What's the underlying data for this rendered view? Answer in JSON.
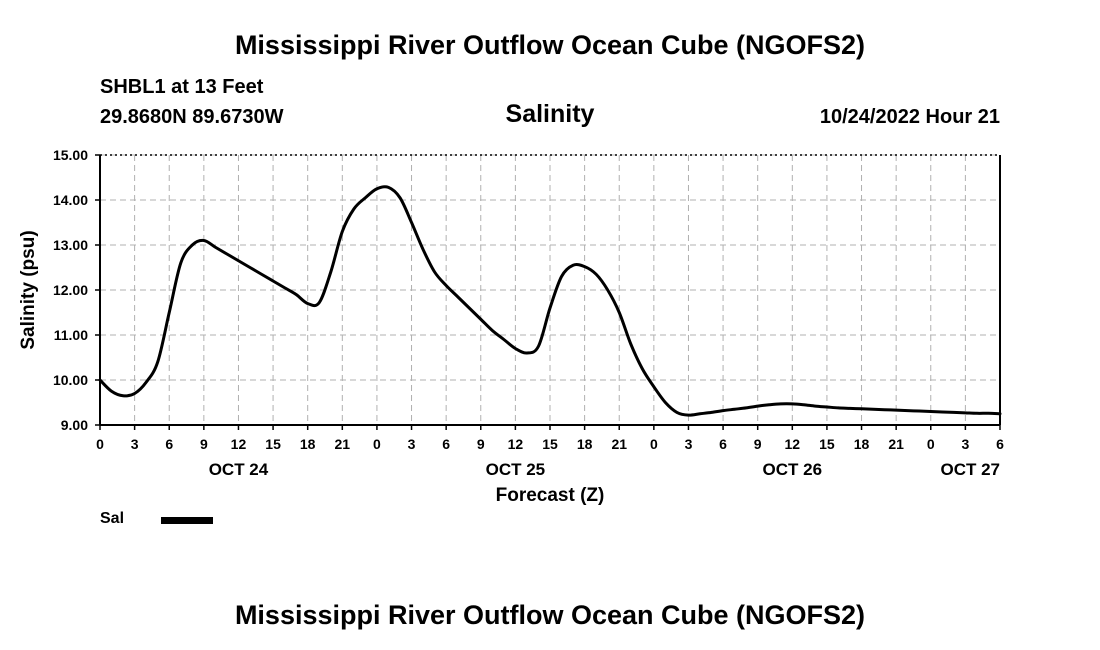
{
  "header": {
    "title": "Mississippi River Outflow Ocean Cube (NGOFS2)",
    "station": "SHBL1 at 13 Feet",
    "coords": "29.8680N  89.6730W",
    "timestamp": "10/24/2022 Hour 21"
  },
  "footer": {
    "title": "Mississippi River Outflow Ocean Cube (NGOFS2)"
  },
  "legend": {
    "label": "Sal"
  },
  "chart_data": {
    "type": "line",
    "title": "Salinity",
    "xlabel": "Forecast (Z)",
    "ylabel": "Salinity (psu)",
    "xlim": [
      0,
      78
    ],
    "ylim": [
      9.0,
      15.0
    ],
    "grid": true,
    "x_ticks": [
      0,
      3,
      6,
      9,
      12,
      15,
      18,
      21,
      24,
      27,
      30,
      33,
      36,
      39,
      42,
      45,
      48,
      51,
      54,
      57,
      60,
      63,
      66,
      69,
      72,
      75,
      78
    ],
    "x_tick_labels": [
      "0",
      "3",
      "6",
      "9",
      "12",
      "15",
      "18",
      "21",
      "0",
      "3",
      "6",
      "9",
      "12",
      "15",
      "18",
      "21",
      "0",
      "3",
      "6",
      "9",
      "12",
      "15",
      "18",
      "21",
      "0",
      "3",
      "6"
    ],
    "y_ticks": [
      9,
      10,
      11,
      12,
      13,
      14,
      15
    ],
    "y_tick_labels": [
      "9.00",
      "10.00",
      "11.00",
      "12.00",
      "13.00",
      "14.00",
      "15.00"
    ],
    "date_labels": [
      {
        "text": "OCT 24",
        "x": 12
      },
      {
        "text": "OCT 25",
        "x": 36
      },
      {
        "text": "OCT 26",
        "x": 60
      },
      {
        "text": "OCT 27",
        "x": 78
      }
    ],
    "series": [
      {
        "name": "Sal",
        "color": "#000000",
        "x": [
          0,
          1,
          2,
          3,
          4,
          5,
          6,
          7,
          8,
          9,
          10,
          11,
          12,
          13,
          14,
          15,
          16,
          17,
          18,
          19,
          20,
          21,
          22,
          23,
          24,
          25,
          26,
          27,
          28,
          29,
          30,
          31,
          32,
          33,
          34,
          35,
          36,
          37,
          38,
          39,
          40,
          41,
          42,
          43,
          44,
          45,
          46,
          47,
          48,
          49,
          50,
          51,
          52,
          53,
          54,
          55,
          56,
          57,
          58,
          59,
          60,
          61,
          62,
          63,
          64,
          65,
          66,
          67,
          68,
          69,
          70,
          71,
          72,
          73,
          74,
          75,
          76,
          77,
          78
        ],
        "values": [
          10.0,
          9.75,
          9.65,
          9.7,
          9.95,
          10.4,
          11.5,
          12.6,
          13.0,
          13.1,
          12.95,
          12.8,
          12.65,
          12.5,
          12.35,
          12.2,
          12.05,
          11.9,
          11.7,
          11.72,
          12.4,
          13.3,
          13.8,
          14.05,
          14.25,
          14.28,
          14.05,
          13.5,
          12.9,
          12.4,
          12.1,
          11.85,
          11.6,
          11.35,
          11.1,
          10.9,
          10.7,
          10.6,
          10.75,
          11.6,
          12.3,
          12.55,
          12.52,
          12.35,
          12.0,
          11.5,
          10.8,
          10.25,
          9.85,
          9.5,
          9.28,
          9.22,
          9.25,
          9.28,
          9.32,
          9.35,
          9.38,
          9.42,
          9.45,
          9.47,
          9.47,
          9.45,
          9.42,
          9.4,
          9.38,
          9.37,
          9.36,
          9.35,
          9.34,
          9.33,
          9.32,
          9.31,
          9.3,
          9.29,
          9.28,
          9.27,
          9.26,
          9.26,
          9.25
        ]
      }
    ]
  }
}
